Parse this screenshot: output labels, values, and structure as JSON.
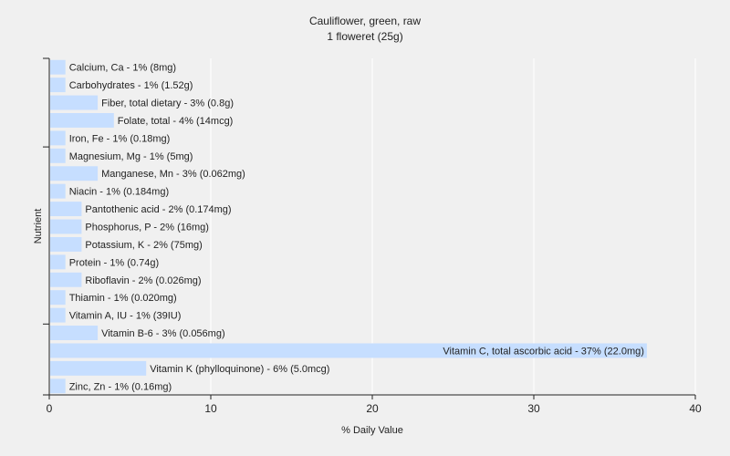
{
  "chart_data": {
    "type": "bar",
    "orientation": "horizontal",
    "title": "Cauliflower, green, raw",
    "subtitle": "1 floweret (25g)",
    "xlabel": "% Daily Value",
    "ylabel": "Nutrient",
    "xlim": [
      0,
      40
    ],
    "xticks": [
      "0",
      "10",
      "20",
      "30",
      "40"
    ],
    "grid": true,
    "bar_color": "#c6deff",
    "categories": [
      "Calcium, Ca",
      "Carbohydrates",
      "Fiber, total dietary",
      "Folate, total",
      "Iron, Fe",
      "Magnesium, Mg",
      "Manganese, Mn",
      "Niacin",
      "Pantothenic acid",
      "Phosphorus, P",
      "Potassium, K",
      "Protein",
      "Riboflavin",
      "Thiamin",
      "Vitamin A, IU",
      "Vitamin B-6",
      "Vitamin C, total ascorbic acid",
      "Vitamin K (phylloquinone)",
      "Zinc, Zn"
    ],
    "values": [
      1,
      1,
      3,
      4,
      1,
      1,
      3,
      1,
      2,
      2,
      2,
      1,
      2,
      1,
      1,
      3,
      37,
      6,
      1
    ],
    "bar_labels": [
      "Calcium, Ca - 1% (8mg)",
      "Carbohydrates - 1% (1.52g)",
      "Fiber, total dietary - 3% (0.8g)",
      "Folate, total - 4% (14mcg)",
      "Iron, Fe - 1% (0.18mg)",
      "Magnesium, Mg - 1% (5mg)",
      "Manganese, Mn - 3% (0.062mg)",
      "Niacin - 1% (0.184mg)",
      "Pantothenic acid - 2% (0.174mg)",
      "Phosphorus, P - 2% (16mg)",
      "Potassium, K - 2% (75mg)",
      "Protein - 1% (0.74g)",
      "Riboflavin - 2% (0.026mg)",
      "Thiamin - 1% (0.020mg)",
      "Vitamin A, IU - 1% (39IU)",
      "Vitamin B-6 - 3% (0.056mg)",
      "Vitamin C, total ascorbic acid - 37% (22.0mg)",
      "Vitamin K (phylloquinone) - 6% (5.0mcg)",
      "Zinc, Zn - 1% (0.16mg)"
    ]
  }
}
